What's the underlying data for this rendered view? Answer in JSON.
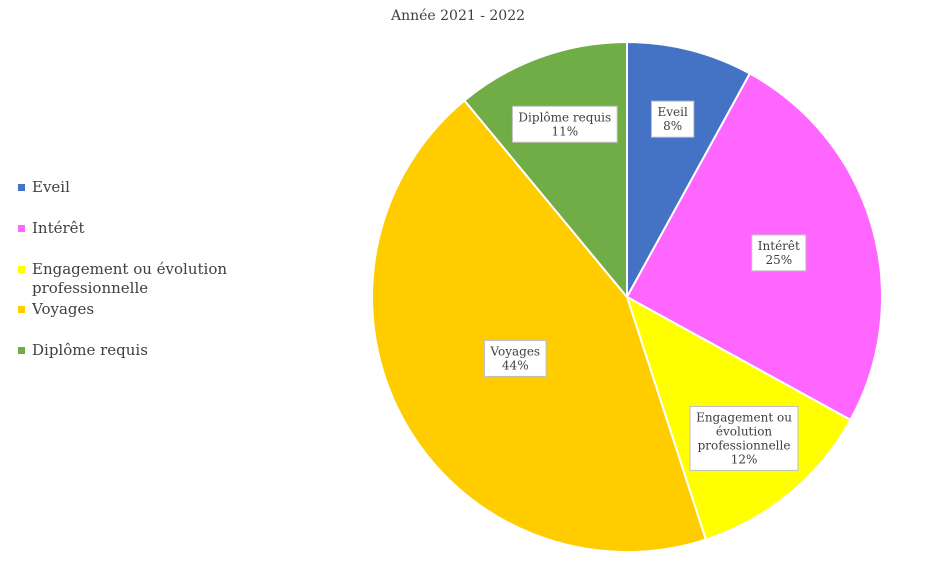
{
  "chart_data": {
    "type": "pie",
    "title": "Année 2021 - 2022",
    "legend_position": "left",
    "slices": [
      {
        "label": "Eveil",
        "value": 8,
        "display": "8%",
        "color": "#4472c4",
        "label_lines": [
          "Eveil",
          "8%"
        ]
      },
      {
        "label": "Intérêt",
        "value": 25,
        "display": "25%",
        "color": "#ff66ff",
        "label_lines": [
          "Intérêt",
          "25%"
        ]
      },
      {
        "label": "Engagement ou évolution professionnelle",
        "value": 12,
        "display": "12%",
        "color": "#ffff00",
        "label_lines": [
          "Engagement ou",
          "évolution",
          "professionnelle",
          "12%"
        ]
      },
      {
        "label": "Voyages",
        "value": 44,
        "display": "44%",
        "color": "#ffcc00",
        "label_lines": [
          "Voyages",
          "44%"
        ]
      },
      {
        "label": "Diplôme requis",
        "value": 11,
        "display": "11%",
        "color": "#70ad47",
        "label_lines": [
          "Diplôme requis",
          "11%"
        ]
      }
    ]
  },
  "legend": {
    "items": [
      {
        "label_lines": [
          "Eveil"
        ]
      },
      {
        "label_lines": [
          "Intérêt"
        ]
      },
      {
        "label_lines": [
          "Engagement ou évolution",
          "professionnelle"
        ]
      },
      {
        "label_lines": [
          "Voyages"
        ]
      },
      {
        "label_lines": [
          "Diplôme requis"
        ]
      }
    ]
  }
}
